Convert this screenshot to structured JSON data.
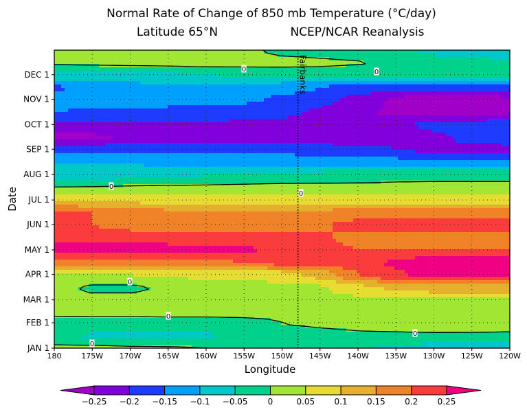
{
  "chart_data": {
    "type": "heatmap",
    "title": "Normal Rate of Change of 850 mb Temperature (°C/day)",
    "subtitle_left": "Latitude 65°N",
    "subtitle_right": "NCEP/NCAR Reanalysis",
    "xlabel": "Longitude",
    "ylabel": "Date",
    "x_tick_labels": [
      "180",
      "175W",
      "170W",
      "165W",
      "160W",
      "155W",
      "150W",
      "145W",
      "140W",
      "135W",
      "130W",
      "125W",
      "120W"
    ],
    "y_tick_labels": [
      "JAN 1",
      "FEB 1",
      "MAR 1",
      "APR 1",
      "MAY 1",
      "JUN 1",
      "JUL 1",
      "AUG 1",
      "SEP 1",
      "OCT 1",
      "NOV 1",
      "DEC 1"
    ],
    "y_tick_days": [
      1,
      32,
      60,
      91,
      121,
      152,
      182,
      213,
      244,
      274,
      305,
      335
    ],
    "xlim_deg_west": [
      180,
      120
    ],
    "ylim_day_of_year": [
      1,
      365
    ],
    "grid": true,
    "annotation": {
      "label": "Fairbanks",
      "longitude_deg_west": 147.9
    },
    "contour_label": "0",
    "colorbar": {
      "levels": [
        -0.25,
        -0.2,
        -0.15,
        -0.1,
        -0.05,
        0,
        0.05,
        0.1,
        0.15,
        0.2,
        0.25
      ],
      "tick_labels": [
        "−0.25",
        "−0.2",
        "−0.15",
        "−0.1",
        "−0.05",
        "0",
        "0.05",
        "0.1",
        "0.15",
        "0.2",
        "0.25"
      ],
      "colors": [
        "#a000c8",
        "#8200dc",
        "#1e3cff",
        "#00a0ff",
        "#00c8c8",
        "#00d28c",
        "#a0e632",
        "#e6dc32",
        "#e6af2d",
        "#f08228",
        "#fa3c3c",
        "#f00082"
      ],
      "placement": "bottom"
    },
    "longitudes_deg_west": [
      180,
      175,
      170,
      165,
      160,
      155,
      150,
      145,
      140,
      135,
      130,
      125,
      120
    ],
    "days": [
      1,
      16,
      32,
      46,
      60,
      74,
      91,
      105,
      121,
      135,
      152,
      166,
      182,
      196,
      213,
      227,
      244,
      258,
      274,
      288,
      305,
      319,
      335,
      349,
      365
    ],
    "values": [
      [
        0.01,
        0.01,
        0.005,
        0.003,
        0.0,
        -0.02,
        -0.03,
        -0.03,
        -0.04,
        -0.06,
        -0.07,
        -0.07,
        -0.07
      ],
      [
        -0.04,
        -0.055,
        -0.06,
        -0.06,
        -0.055,
        -0.04,
        -0.03,
        -0.02,
        -0.01,
        -0.01,
        -0.01,
        -0.01,
        -0.01
      ],
      [
        -0.015,
        -0.02,
        -0.02,
        -0.02,
        -0.02,
        -0.015,
        0.0,
        0.01,
        0.02,
        0.03,
        0.05,
        0.045,
        0.03
      ],
      [
        0.01,
        0.015,
        0.015,
        0.02,
        0.02,
        0.02,
        0.02,
        0.025,
        0.03,
        0.03,
        0.03,
        0.03,
        0.03
      ],
      [
        0.02,
        0.02,
        0.02,
        0.025,
        0.03,
        0.03,
        0.03,
        0.035,
        0.04,
        0.045,
        0.045,
        0.045,
        0.045
      ],
      [
        0.02,
        -0.01,
        -0.01,
        0.01,
        0.03,
        0.03,
        0.03,
        0.04,
        0.08,
        0.11,
        0.12,
        0.12,
        0.12
      ],
      [
        0.05,
        0.05,
        0.05,
        0.055,
        0.06,
        0.065,
        0.08,
        0.12,
        0.2,
        0.24,
        0.27,
        0.27,
        0.26
      ],
      [
        0.17,
        0.17,
        0.17,
        0.18,
        0.19,
        0.2,
        0.21,
        0.22,
        0.23,
        0.26,
        0.29,
        0.29,
        0.28
      ],
      [
        0.27,
        0.28,
        0.28,
        0.27,
        0.27,
        0.26,
        0.23,
        0.22,
        0.2,
        0.2,
        0.2,
        0.2,
        0.2
      ],
      [
        0.24,
        0.24,
        0.23,
        0.23,
        0.23,
        0.22,
        0.22,
        0.21,
        0.18,
        0.18,
        0.18,
        0.18,
        0.18
      ],
      [
        0.22,
        0.2,
        0.18,
        0.18,
        0.18,
        0.18,
        0.17,
        0.19,
        0.22,
        0.23,
        0.23,
        0.23,
        0.23
      ],
      [
        0.21,
        0.2,
        0.17,
        0.16,
        0.16,
        0.16,
        0.16,
        0.16,
        0.17,
        0.18,
        0.19,
        0.19,
        0.19
      ],
      [
        0.1,
        0.1,
        0.09,
        0.09,
        0.09,
        0.09,
        0.09,
        0.08,
        0.08,
        0.07,
        0.06,
        0.06,
        0.06
      ],
      [
        0.003,
        0.005,
        0.008,
        0.01,
        0.01,
        0.015,
        0.02,
        0.02,
        0.02,
        0.025,
        0.03,
        0.03,
        0.03
      ],
      [
        -0.07,
        -0.07,
        -0.065,
        -0.06,
        -0.05,
        -0.05,
        -0.045,
        -0.04,
        -0.035,
        -0.03,
        -0.03,
        -0.03,
        -0.03
      ],
      [
        -0.1,
        -0.1,
        -0.1,
        -0.11,
        -0.11,
        -0.11,
        -0.12,
        -0.12,
        -0.13,
        -0.13,
        -0.14,
        -0.14,
        -0.14
      ],
      [
        -0.17,
        -0.17,
        -0.17,
        -0.17,
        -0.17,
        -0.16,
        -0.16,
        -0.18,
        -0.19,
        -0.2,
        -0.21,
        -0.21,
        -0.21
      ],
      [
        -0.27,
        -0.26,
        -0.24,
        -0.23,
        -0.23,
        -0.23,
        -0.23,
        -0.23,
        -0.23,
        -0.23,
        -0.21,
        -0.19,
        -0.18
      ],
      [
        -0.21,
        -0.21,
        -0.21,
        -0.21,
        -0.21,
        -0.21,
        -0.22,
        -0.22,
        -0.22,
        -0.21,
        -0.19,
        -0.18,
        -0.17
      ],
      [
        -0.15,
        -0.16,
        -0.16,
        -0.17,
        -0.17,
        -0.18,
        -0.19,
        -0.21,
        -0.24,
        -0.26,
        -0.26,
        -0.26,
        -0.25
      ],
      [
        -0.12,
        -0.12,
        -0.12,
        -0.125,
        -0.13,
        -0.14,
        -0.16,
        -0.18,
        -0.22,
        -0.26,
        -0.27,
        -0.27,
        -0.26
      ],
      [
        -0.16,
        -0.13,
        -0.12,
        -0.11,
        -0.11,
        -0.12,
        -0.13,
        -0.15,
        -0.17,
        -0.18,
        -0.18,
        -0.18,
        -0.18
      ],
      [
        -0.07,
        -0.07,
        -0.065,
        -0.06,
        -0.05,
        -0.045,
        -0.04,
        -0.04,
        -0.04,
        -0.04,
        -0.04,
        -0.04,
        -0.04
      ],
      [
        0.005,
        0.008,
        0.01,
        0.012,
        0.015,
        0.015,
        0.015,
        0.01,
        0.003,
        -0.01,
        -0.03,
        -0.04,
        -0.045
      ],
      [
        0.03,
        0.03,
        0.03,
        0.03,
        0.025,
        0.01,
        -0.01,
        -0.02,
        -0.03,
        -0.04,
        -0.06,
        -0.07,
        -0.07
      ]
    ]
  }
}
